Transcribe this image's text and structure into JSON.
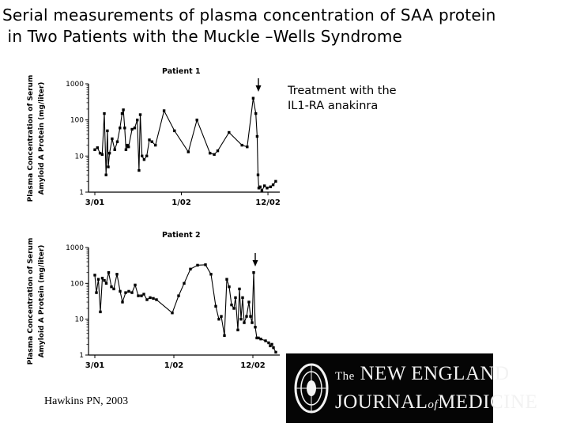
{
  "slide": {
    "title_line1": "Serial measurements of plasma concentration of SAA protein",
    "title_line2": " in Two Patients with the Muckle –Wells Syndrome",
    "annotation_line1": "Treatment with the",
    "annotation_line2": "IL1-RA anakinra",
    "citation": "Hawkins PN, 2003"
  },
  "logo": {
    "the": "The",
    "line1": "NEW ENGLAND",
    "line2a": "JOURNAL",
    "of": "of",
    "line2b": "MEDICINE"
  },
  "chart_data": [
    {
      "type": "line",
      "title": "Patient 1",
      "ylabel_line1": "Plasma Concentration of Serum",
      "ylabel_line2": "Amyloid A Protein (mg/liter)",
      "yscale": "log",
      "ylim": [
        1,
        1000
      ],
      "yticks": [
        1,
        10,
        100,
        1000
      ],
      "ytick_labels": [
        "1",
        "10",
        "100",
        "1000"
      ],
      "xlim": [
        0,
        21
      ],
      "xticks": [
        0,
        10,
        20
      ],
      "xtick_labels": [
        "3/01",
        "1/02",
        "12/02"
      ],
      "treatment_marker_x": 18.9,
      "x": [
        0.0,
        0.3,
        0.6,
        0.85,
        1.1,
        1.3,
        1.45,
        1.55,
        1.7,
        2.0,
        2.3,
        2.6,
        2.9,
        3.15,
        3.3,
        3.45,
        3.6,
        3.75,
        3.9,
        4.3,
        4.6,
        4.9,
        5.1,
        5.25,
        5.45,
        5.7,
        6.0,
        6.3,
        6.6,
        7.0,
        8.0,
        9.2,
        10.8,
        11.8,
        13.3,
        13.8,
        14.2,
        15.5,
        17.0,
        17.6,
        18.3,
        18.6,
        18.75,
        18.85,
        18.95,
        19.1,
        19.3,
        19.6,
        19.9,
        20.3,
        20.6,
        20.9
      ],
      "values": [
        15,
        17,
        12,
        11,
        150,
        3,
        50,
        5,
        12,
        30,
        15,
        25,
        60,
        150,
        190,
        60,
        15,
        20,
        18,
        55,
        60,
        100,
        4,
        140,
        10,
        8,
        10,
        28,
        25,
        20,
        180,
        50,
        13,
        100,
        12,
        11,
        14,
        45,
        20,
        18,
        400,
        150,
        35,
        3,
        1.3,
        1.4,
        1.1,
        1.5,
        1.3,
        1.4,
        1.6,
        2
      ]
    },
    {
      "type": "line",
      "title": "Patient 2",
      "ylabel_line1": "Plasma Concentration of Serum",
      "ylabel_line2": "Amyloid A Protein (mg/liter)",
      "yscale": "log",
      "ylim": [
        1,
        1000
      ],
      "yticks": [
        1,
        10,
        100,
        1000
      ],
      "ytick_labels": [
        "1",
        "10",
        "100",
        "1000"
      ],
      "xlim": [
        0,
        23
      ],
      "xticks": [
        0,
        10,
        20
      ],
      "xtick_labels": [
        "3/01",
        "1/02",
        "12/02"
      ],
      "treatment_marker_x": 20.3,
      "x": [
        0.0,
        0.2,
        0.45,
        0.7,
        0.95,
        1.2,
        1.45,
        1.75,
        2.1,
        2.4,
        2.8,
        3.2,
        3.5,
        3.9,
        4.3,
        4.7,
        5.1,
        5.5,
        5.9,
        6.2,
        6.6,
        7.0,
        7.4,
        7.8,
        9.8,
        10.6,
        11.3,
        12.1,
        13.0,
        14.0,
        14.7,
        15.3,
        15.7,
        16.0,
        16.4,
        16.7,
        17.0,
        17.3,
        17.6,
        17.8,
        18.1,
        18.3,
        18.5,
        18.7,
        18.9,
        19.2,
        19.5,
        19.7,
        19.9,
        20.1,
        20.3,
        20.5,
        20.7,
        21.0,
        21.6,
        22.0,
        22.2,
        22.4,
        22.6,
        22.9
      ],
      "values": [
        170,
        55,
        130,
        16,
        140,
        120,
        100,
        200,
        80,
        70,
        180,
        60,
        30,
        55,
        60,
        55,
        90,
        45,
        45,
        50,
        35,
        40,
        38,
        35,
        15,
        45,
        100,
        250,
        320,
        330,
        180,
        23,
        10,
        12,
        3.5,
        130,
        80,
        25,
        20,
        40,
        5,
        70,
        10,
        40,
        8,
        12,
        30,
        12,
        8,
        200,
        6,
        3,
        3,
        2.8,
        2.5,
        2.2,
        1.8,
        2.0,
        1.6,
        1.2
      ]
    }
  ]
}
